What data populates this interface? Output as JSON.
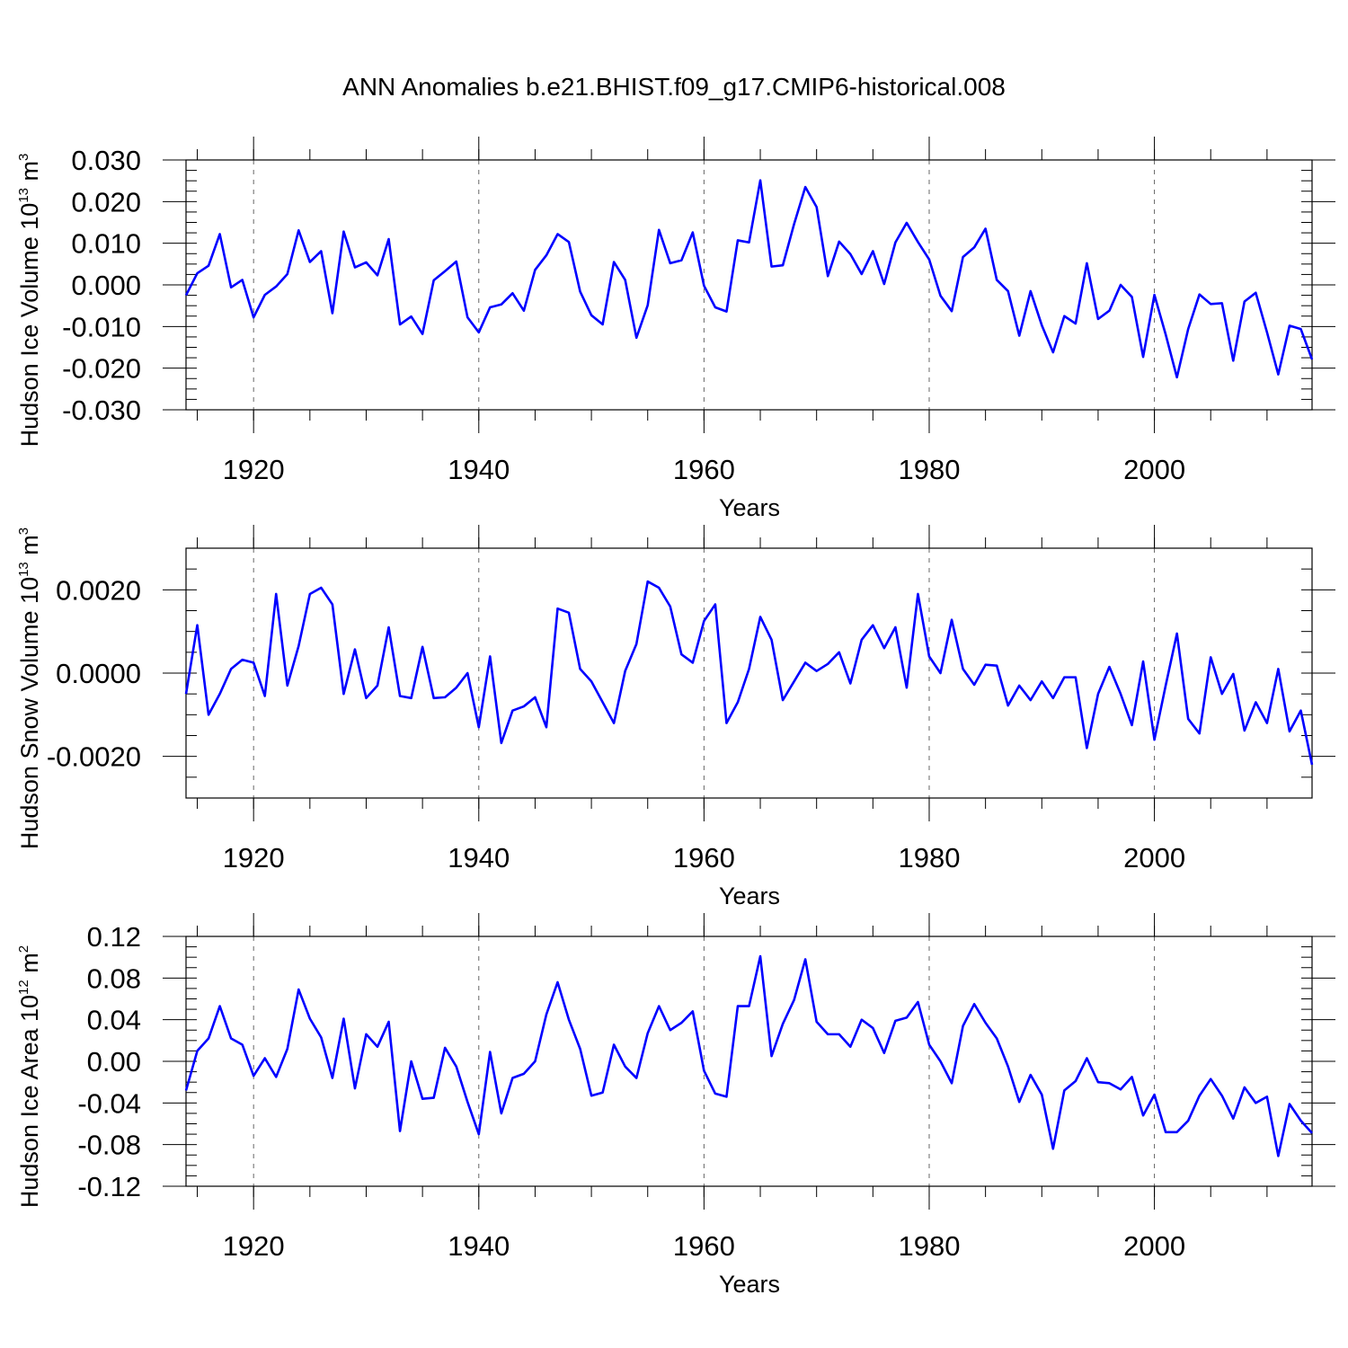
{
  "figure": {
    "title": "ANN Anomalies b.e21.BHIST.f09_g17.CMIP6-historical.008"
  },
  "chart_data": [
    {
      "type": "line",
      "name": "ice-volume",
      "ylabel": {
        "main": "Hudson Ice Volume 10",
        "sup": "13",
        "unit": " m",
        "unit_sup": "3"
      },
      "xlabel": "Years",
      "xlim": [
        1914,
        2014
      ],
      "ylim": [
        -0.03,
        0.03
      ],
      "yticks": [
        -0.03,
        -0.02,
        -0.01,
        0.0,
        0.01,
        0.02,
        0.03
      ],
      "ytick_labels": [
        "-0.030",
        "-0.020",
        "-0.010",
        "0.000",
        "0.010",
        "0.020",
        "0.030"
      ],
      "yminor_step": 0.0025,
      "xticks": [
        1920,
        1940,
        1960,
        1980,
        2000
      ],
      "xtick_labels": [
        "1920",
        "1940",
        "1960",
        "1980",
        "2000"
      ],
      "xminor_step": 5,
      "gridlines_x": [
        1920,
        1940,
        1960,
        1980,
        2000
      ],
      "color": "#0000ff",
      "x_start": 1914,
      "values": [
        -0.0025,
        0.0028,
        0.0046,
        0.0122,
        -0.0006,
        0.0012,
        -0.0078,
        -0.0024,
        -0.0004,
        0.0026,
        0.0131,
        0.0055,
        0.0081,
        -0.0068,
        0.0128,
        0.0042,
        0.0054,
        0.0023,
        0.011,
        -0.0095,
        -0.0076,
        -0.0118,
        0.0011,
        0.0033,
        0.0056,
        -0.0078,
        -0.0114,
        -0.0054,
        -0.0047,
        -0.002,
        -0.0062,
        0.0036,
        0.0071,
        0.0122,
        0.0103,
        -0.0016,
        -0.0073,
        -0.0095,
        0.0055,
        0.0012,
        -0.0127,
        -0.0049,
        0.0132,
        0.0052,
        0.0059,
        0.0126,
        -0.0002,
        -0.0054,
        -0.0064,
        0.0107,
        0.0102,
        0.0251,
        0.0044,
        0.0047,
        0.0146,
        0.0235,
        0.0187,
        0.0021,
        0.0104,
        0.0074,
        0.0026,
        0.0081,
        0.0002,
        0.0102,
        0.0149,
        0.0103,
        0.0061,
        -0.0026,
        -0.0063,
        0.0067,
        0.009,
        0.0135,
        0.0012,
        -0.0015,
        -0.0122,
        -0.0015,
        -0.0097,
        -0.0162,
        -0.0075,
        -0.0093,
        0.0052,
        -0.0082,
        -0.0062,
        0.0,
        -0.0029,
        -0.0173,
        -0.0024,
        -0.0119,
        -0.0222,
        -0.0106,
        -0.0023,
        -0.0046,
        -0.0044,
        -0.0182,
        -0.004,
        -0.0019,
        -0.0114,
        -0.0215,
        -0.0098,
        -0.0106,
        -0.0179
      ]
    },
    {
      "type": "line",
      "name": "snow-volume",
      "ylabel": {
        "main": "Hudson Snow Volume 10",
        "sup": "13",
        "unit": " m",
        "unit_sup": "3"
      },
      "xlabel": "Years",
      "xlim": [
        1914,
        2014
      ],
      "ylim": [
        -0.003,
        0.003
      ],
      "yticks": [
        -0.002,
        0.0,
        0.002
      ],
      "ytick_labels": [
        "-0.0020",
        "0.0000",
        "0.0020"
      ],
      "yminor_step": 0.0005,
      "xticks": [
        1920,
        1940,
        1960,
        1980,
        2000
      ],
      "xtick_labels": [
        "1920",
        "1940",
        "1960",
        "1980",
        "2000"
      ],
      "xminor_step": 5,
      "gridlines_x": [
        1920,
        1940,
        1960,
        1980,
        2000
      ],
      "color": "#0000ff",
      "x_start": 1914,
      "values": [
        -0.0005,
        0.00115,
        -0.001,
        -0.0005,
        0.0001,
        0.00032,
        0.00025,
        -0.00055,
        0.0019,
        -0.0003,
        0.00065,
        0.0019,
        0.00205,
        0.00165,
        -0.0005,
        0.00057,
        -0.0006,
        -0.0003,
        0.0011,
        -0.00055,
        -0.0006,
        0.00063,
        -0.0006,
        -0.00058,
        -0.00035,
        0.0,
        -0.0013,
        0.0004,
        -0.00168,
        -0.0009,
        -0.0008,
        -0.00058,
        -0.0013,
        0.00155,
        0.00145,
        0.0001,
        -0.0002,
        -0.0007,
        -0.0012,
        5e-05,
        0.0007,
        0.0022,
        0.00205,
        0.0016,
        0.00045,
        0.00025,
        0.00125,
        0.00165,
        -0.0012,
        -0.0007,
        0.0001,
        0.00135,
        0.0008,
        -0.00065,
        -0.0002,
        0.00025,
        5e-05,
        0.00022,
        0.0005,
        -0.00025,
        0.0008,
        0.00115,
        0.0006,
        0.0011,
        -0.00035,
        0.0019,
        0.0004,
        0.0,
        0.00128,
        0.0001,
        -0.00028,
        0.0002,
        0.00018,
        -0.00078,
        -0.0003,
        -0.00065,
        -0.0002,
        -0.0006,
        -0.0001,
        -0.0001,
        -0.0018,
        -0.0005,
        0.00015,
        -0.0005,
        -0.00125,
        0.00028,
        -0.0016,
        -0.0003,
        0.00095,
        -0.0011,
        -0.00145,
        0.00038,
        -0.0005,
        -2e-05,
        -0.00138,
        -0.0007,
        -0.0012,
        0.0001,
        -0.0014,
        -0.0009,
        -0.0022
      ]
    },
    {
      "type": "line",
      "name": "ice-area",
      "ylabel": {
        "main": "Hudson Ice Area 10",
        "sup": "12",
        "unit": " m",
        "unit_sup": "2"
      },
      "xlabel": "Years",
      "xlim": [
        1914,
        2014
      ],
      "ylim": [
        -0.12,
        0.12
      ],
      "yticks": [
        -0.12,
        -0.08,
        -0.04,
        0.0,
        0.04,
        0.08,
        0.12
      ],
      "ytick_labels": [
        "-0.12",
        "-0.08",
        "-0.04",
        "0.00",
        "0.04",
        "0.08",
        "0.12"
      ],
      "yminor_step": 0.01,
      "xticks": [
        1920,
        1940,
        1960,
        1980,
        2000
      ],
      "xtick_labels": [
        "1920",
        "1940",
        "1960",
        "1980",
        "2000"
      ],
      "xminor_step": 5,
      "gridlines_x": [
        1920,
        1940,
        1960,
        1980,
        2000
      ],
      "color": "#0000ff",
      "x_start": 1914,
      "values": [
        -0.028,
        0.01,
        0.022,
        0.053,
        0.022,
        0.016,
        -0.014,
        0.003,
        -0.015,
        0.012,
        0.069,
        0.041,
        0.023,
        -0.016,
        0.041,
        -0.026,
        0.026,
        0.014,
        0.038,
        -0.067,
        0.0,
        -0.036,
        -0.035,
        0.013,
        -0.005,
        -0.039,
        -0.07,
        0.009,
        -0.05,
        -0.016,
        -0.012,
        0.0,
        0.045,
        0.076,
        0.04,
        0.012,
        -0.033,
        -0.03,
        0.016,
        -0.005,
        -0.016,
        0.027,
        0.053,
        0.03,
        0.037,
        0.048,
        -0.009,
        -0.031,
        -0.034,
        0.053,
        0.053,
        0.101,
        0.005,
        0.036,
        0.059,
        0.098,
        0.038,
        0.026,
        0.026,
        0.014,
        0.04,
        0.032,
        0.008,
        0.039,
        0.042,
        0.057,
        0.016,
        0.0,
        -0.021,
        0.034,
        0.055,
        0.037,
        0.022,
        -0.005,
        -0.039,
        -0.013,
        -0.032,
        -0.084,
        -0.028,
        -0.019,
        0.003,
        -0.02,
        -0.021,
        -0.027,
        -0.015,
        -0.052,
        -0.032,
        -0.068,
        -0.068,
        -0.057,
        -0.033,
        -0.017,
        -0.033,
        -0.055,
        -0.025,
        -0.04,
        -0.034,
        -0.091,
        -0.041,
        -0.057,
        -0.069
      ]
    }
  ]
}
